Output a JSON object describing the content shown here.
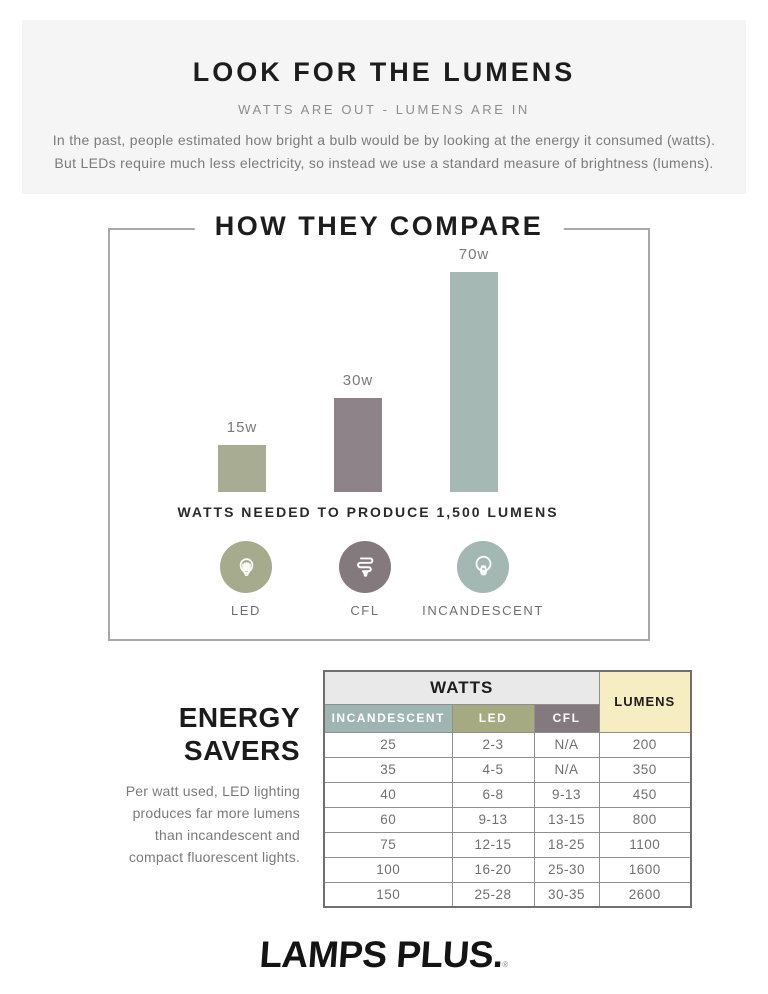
{
  "palette": {
    "header_bg": "#f5f5f5",
    "table_watts_bg": "#e9e9e9",
    "lumens_bg": "#f6edc3",
    "led_color": "#a6ab8d",
    "cfl_color": "#877b80",
    "incandescent_color": "#a3b7b3"
  },
  "header": {
    "title": "LOOK FOR THE LUMENS",
    "subtitle": "WATTS ARE OUT - LUMENS ARE IN",
    "body_lines": [
      "In the past, people estimated how bright a bulb would be by looking at the energy it consumed (watts).",
      "But LEDs require much less electricity, so instead we use a standard measure of brightness (lumens)."
    ]
  },
  "chart_data": {
    "type": "bar",
    "title": "HOW THEY COMPARE",
    "caption": "WATTS NEEDED TO PRODUCE 1,500 LUMENS",
    "categories": [
      "LED",
      "CFL",
      "INCANDESCENT"
    ],
    "values": [
      15,
      30,
      70
    ],
    "bar_labels": [
      "15w",
      "30w",
      "70w"
    ],
    "colors": [
      "#a7ac92",
      "#8d8388",
      "#a5b8b4"
    ],
    "ylabel": "watts",
    "ylim": [
      0,
      70
    ],
    "grid": false,
    "legend": false
  },
  "compare": {
    "bulbs": [
      {
        "label": "LED",
        "color": "#a6ab8d",
        "icon": "led-bulb-icon"
      },
      {
        "label": "CFL",
        "color": "#847a7e",
        "icon": "cfl-bulb-icon"
      },
      {
        "label": "INCANDESCENT",
        "color": "#a3b7b3",
        "icon": "incandescent-bulb-icon"
      }
    ]
  },
  "energy_savers": {
    "heading_lines": [
      "ENERGY",
      "SAVERS"
    ],
    "body_lines": [
      "Per watt used, LED lighting",
      "produces far more lumens",
      "than incandescent and",
      "compact fluorescent lights."
    ]
  },
  "table": {
    "group_header": "WATTS",
    "lumens_header": "LUMENS",
    "lumens_color": "#f6edc3",
    "columns": [
      {
        "label": "INCANDESCENT",
        "color": "#9eb5b1"
      },
      {
        "label": "LED",
        "color": "#a5aa81"
      },
      {
        "label": "CFL",
        "color": "#83797e"
      }
    ],
    "rows": [
      [
        "25",
        "2-3",
        "N/A",
        "200"
      ],
      [
        "35",
        "4-5",
        "N/A",
        "350"
      ],
      [
        "40",
        "6-8",
        "9-13",
        "450"
      ],
      [
        "60",
        "9-13",
        "13-15",
        "800"
      ],
      [
        "75",
        "12-15",
        "18-25",
        "1100"
      ],
      [
        "100",
        "16-20",
        "25-30",
        "1600"
      ],
      [
        "150",
        "25-28",
        "30-35",
        "2600"
      ]
    ]
  },
  "footer": {
    "logo": "LAMPS PLUS.",
    "reg_mark": "®"
  }
}
